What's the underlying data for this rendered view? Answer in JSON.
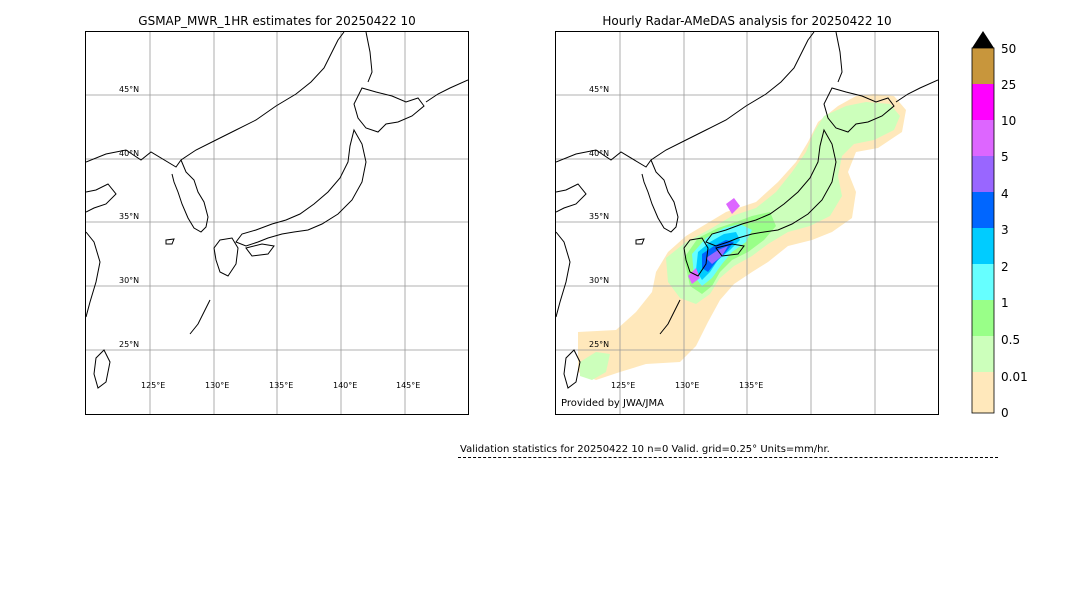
{
  "left_panel": {
    "title": "GSMAP_MWR_1HR estimates for 20250422 10",
    "lat_labels": [
      "45°N",
      "40°N",
      "35°N",
      "30°N",
      "25°N"
    ],
    "lon_labels": [
      "125°E",
      "130°E",
      "135°E",
      "140°E",
      "145°E"
    ]
  },
  "right_panel": {
    "title": "Hourly Radar-AMeDAS analysis for 20250422 10",
    "lat_labels": [
      "45°N",
      "40°N",
      "35°N",
      "30°N",
      "25°N"
    ],
    "lon_labels": [
      "125°E",
      "130°E",
      "135°E"
    ],
    "credit": "Provided by JWA/JMA"
  },
  "colorbar": {
    "labels": [
      "50",
      "25",
      "10",
      "5",
      "4",
      "3",
      "2",
      "1",
      "0.5",
      "0.01",
      "0"
    ],
    "colors": [
      "#c8963c",
      "#ff00ff",
      "#dd66ff",
      "#9966ff",
      "#0066ff",
      "#00ccff",
      "#66ffff",
      "#99ff88",
      "#ccffbb",
      "#ffe8bb"
    ],
    "extend_color": "#000000"
  },
  "validation": {
    "text": "Validation statistics for 20250422 10  n=0 Valid. grid=0.25° Units=mm/hr."
  },
  "map_colors": {
    "grid": "#999999",
    "coast": "#000000",
    "rain_light": "#ffe8bb",
    "rain_001": "#ccffbb",
    "rain_05": "#99ff88",
    "rain_1": "#66ffff",
    "rain_2": "#00ccff",
    "rain_3": "#0066ff",
    "rain_5": "#9966ff",
    "rain_10": "#dd66ff"
  }
}
